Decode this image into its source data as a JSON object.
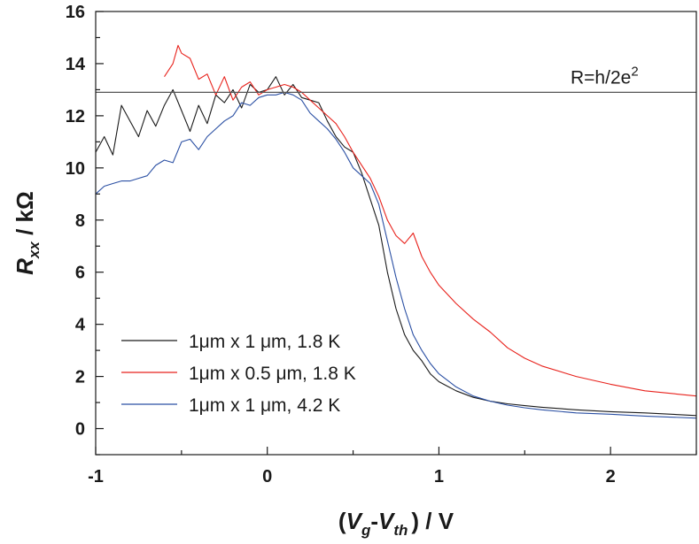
{
  "chart_data": {
    "type": "line",
    "title": "",
    "xlabel": {
      "open": "(",
      "v": "V",
      "g": "g",
      "dash": "-",
      "v2": "V",
      "th": "th",
      "close": ") / V"
    },
    "ylabel": {
      "r": "R",
      "sub": "xx",
      "unit": " / kΩ"
    },
    "xlim": [
      -1,
      2.5
    ],
    "ylim": [
      -1,
      16
    ],
    "xticks": [
      -1,
      0,
      1,
      2
    ],
    "xtick_labels": [
      "-1",
      "0",
      "1",
      "2"
    ],
    "yticks": [
      0,
      2,
      4,
      6,
      8,
      10,
      12,
      14,
      16
    ],
    "ytick_labels": [
      "0",
      "2",
      "4",
      "6",
      "8",
      "10",
      "12",
      "14",
      "16"
    ],
    "grid": false,
    "legend_position": "bottom-left",
    "annotation": {
      "text": "R=h/2e",
      "sup": "2",
      "y": 12.9
    },
    "reference_line": {
      "y": 12.9,
      "color": "#555555"
    },
    "series": [
      {
        "name": "1μm x 1 μm, 1.8 K",
        "color": "#1a1a1a",
        "x": [
          -1.0,
          -0.95,
          -0.9,
          -0.85,
          -0.8,
          -0.75,
          -0.7,
          -0.65,
          -0.6,
          -0.55,
          -0.5,
          -0.45,
          -0.4,
          -0.35,
          -0.3,
          -0.25,
          -0.2,
          -0.15,
          -0.1,
          -0.05,
          0.0,
          0.05,
          0.1,
          0.15,
          0.2,
          0.25,
          0.3,
          0.35,
          0.4,
          0.45,
          0.5,
          0.55,
          0.6,
          0.65,
          0.7,
          0.75,
          0.8,
          0.85,
          0.9,
          0.95,
          1.0,
          1.1,
          1.2,
          1.3,
          1.4,
          1.5,
          1.6,
          1.8,
          2.0,
          2.2,
          2.5
        ],
        "y": [
          10.6,
          11.2,
          10.5,
          12.4,
          11.8,
          11.2,
          12.2,
          11.6,
          12.4,
          13.0,
          12.2,
          11.4,
          12.4,
          11.7,
          12.8,
          12.5,
          13.0,
          12.3,
          13.2,
          12.9,
          13.0,
          13.5,
          12.8,
          13.2,
          12.7,
          12.6,
          12.5,
          11.8,
          11.2,
          10.8,
          10.6,
          9.8,
          8.8,
          7.8,
          6.0,
          4.6,
          3.6,
          3.0,
          2.6,
          2.1,
          1.8,
          1.45,
          1.2,
          1.05,
          0.95,
          0.88,
          0.82,
          0.72,
          0.65,
          0.6,
          0.5
        ]
      },
      {
        "name": "1μm x 0.5 μm, 1.8 K",
        "color": "#e8221c",
        "x": [
          -0.6,
          -0.55,
          -0.52,
          -0.5,
          -0.45,
          -0.4,
          -0.35,
          -0.3,
          -0.25,
          -0.2,
          -0.15,
          -0.1,
          -0.05,
          0.0,
          0.05,
          0.1,
          0.15,
          0.2,
          0.25,
          0.3,
          0.35,
          0.4,
          0.45,
          0.5,
          0.55,
          0.6,
          0.65,
          0.7,
          0.75,
          0.8,
          0.85,
          0.9,
          0.95,
          1.0,
          1.1,
          1.2,
          1.3,
          1.4,
          1.5,
          1.6,
          1.8,
          2.0,
          2.2,
          2.5
        ],
        "y": [
          13.5,
          14.0,
          14.7,
          14.4,
          14.2,
          13.4,
          13.6,
          12.8,
          13.5,
          12.6,
          13.1,
          13.3,
          12.8,
          13.0,
          13.1,
          13.2,
          13.1,
          12.9,
          12.6,
          12.3,
          12.0,
          11.7,
          11.2,
          10.6,
          10.1,
          9.6,
          8.9,
          8.0,
          7.4,
          7.1,
          7.5,
          6.6,
          6.0,
          5.5,
          4.8,
          4.2,
          3.7,
          3.1,
          2.7,
          2.4,
          2.0,
          1.7,
          1.45,
          1.25
        ]
      },
      {
        "name": "1μm x 1 μm, 4.2 K",
        "color": "#2a4fa3",
        "x": [
          -1.0,
          -0.95,
          -0.9,
          -0.85,
          -0.8,
          -0.75,
          -0.7,
          -0.65,
          -0.6,
          -0.55,
          -0.5,
          -0.45,
          -0.4,
          -0.35,
          -0.3,
          -0.25,
          -0.2,
          -0.15,
          -0.1,
          -0.05,
          0.0,
          0.05,
          0.1,
          0.15,
          0.2,
          0.25,
          0.3,
          0.35,
          0.4,
          0.45,
          0.5,
          0.55,
          0.6,
          0.65,
          0.7,
          0.75,
          0.8,
          0.85,
          0.9,
          0.95,
          1.0,
          1.1,
          1.2,
          1.3,
          1.4,
          1.5,
          1.6,
          1.8,
          2.0,
          2.2,
          2.5
        ],
        "y": [
          9.0,
          9.3,
          9.4,
          9.5,
          9.5,
          9.6,
          9.7,
          10.1,
          10.3,
          10.2,
          11.0,
          11.1,
          10.7,
          11.2,
          11.5,
          11.8,
          12.0,
          12.5,
          12.4,
          12.7,
          12.8,
          12.8,
          12.9,
          12.8,
          12.6,
          12.1,
          11.8,
          11.5,
          11.1,
          10.6,
          10.0,
          9.7,
          9.4,
          8.6,
          7.2,
          5.8,
          4.6,
          3.6,
          3.0,
          2.5,
          2.1,
          1.6,
          1.25,
          1.05,
          0.9,
          0.8,
          0.72,
          0.6,
          0.55,
          0.48,
          0.4
        ]
      }
    ]
  }
}
